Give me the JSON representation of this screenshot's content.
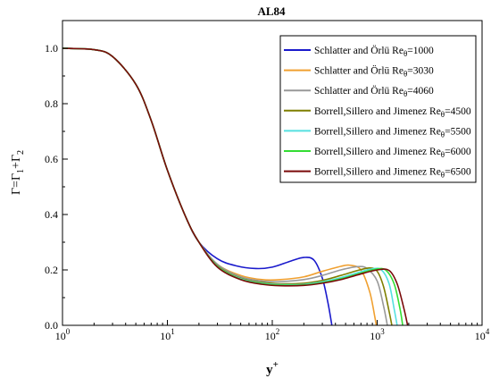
{
  "chart_data": {
    "type": "line",
    "title": "AL84",
    "xlabel": {
      "base": "y",
      "sup": "+"
    },
    "ylabel": {
      "parts": [
        "Γ=Γ",
        "1",
        "+Γ",
        "2"
      ]
    },
    "xscale": "log",
    "xlim": [
      1,
      10000
    ],
    "ylim": [
      0.0,
      1.1
    ],
    "x_ticks": [
      {
        "value": 1,
        "base": "10",
        "exp": "0"
      },
      {
        "value": 10,
        "base": "10",
        "exp": "1"
      },
      {
        "value": 100,
        "base": "10",
        "exp": "2"
      },
      {
        "value": 1000,
        "base": "10",
        "exp": "3"
      },
      {
        "value": 10000,
        "base": "10",
        "exp": "4"
      }
    ],
    "y_ticks": [
      {
        "value": 0.0,
        "label": "0.0"
      },
      {
        "value": 0.2,
        "label": "0.2"
      },
      {
        "value": 0.4,
        "label": "0.4"
      },
      {
        "value": 0.6,
        "label": "0.6"
      },
      {
        "value": 0.8,
        "label": "0.8"
      },
      {
        "value": 1.0,
        "label": "1.0"
      }
    ],
    "grid": false,
    "legend": "top-right",
    "series": [
      {
        "name": "Schlatter and Örlü Re",
        "subscript": "θ",
        "suffix": "=1000",
        "color": "#1a1acc",
        "points": [
          [
            1,
            1.0
          ],
          [
            2,
            0.995
          ],
          [
            3,
            0.97
          ],
          [
            5,
            0.87
          ],
          [
            7,
            0.74
          ],
          [
            10,
            0.56
          ],
          [
            15,
            0.39
          ],
          [
            20,
            0.3
          ],
          [
            30,
            0.24
          ],
          [
            45,
            0.215
          ],
          [
            70,
            0.205
          ],
          [
            100,
            0.21
          ],
          [
            150,
            0.232
          ],
          [
            200,
            0.245
          ],
          [
            250,
            0.235
          ],
          [
            300,
            0.17
          ],
          [
            340,
            0.08
          ],
          [
            370,
            0.0
          ]
        ]
      },
      {
        "name": "Schlatter and Örlü Re",
        "subscript": "θ",
        "suffix": "=3030",
        "color": "#f0a030",
        "points": [
          [
            1,
            1.0
          ],
          [
            2,
            0.995
          ],
          [
            3,
            0.97
          ],
          [
            5,
            0.87
          ],
          [
            7,
            0.74
          ],
          [
            10,
            0.56
          ],
          [
            15,
            0.39
          ],
          [
            20,
            0.3
          ],
          [
            30,
            0.22
          ],
          [
            50,
            0.18
          ],
          [
            80,
            0.165
          ],
          [
            120,
            0.165
          ],
          [
            200,
            0.175
          ],
          [
            300,
            0.195
          ],
          [
            450,
            0.213
          ],
          [
            550,
            0.217
          ],
          [
            700,
            0.2
          ],
          [
            850,
            0.12
          ],
          [
            950,
            0.03
          ],
          [
            980,
            0.0
          ]
        ]
      },
      {
        "name": "Schlatter and Örlü Re",
        "subscript": "θ",
        "suffix": "=4060",
        "color": "#999999",
        "points": [
          [
            1,
            1.0
          ],
          [
            2,
            0.995
          ],
          [
            3,
            0.97
          ],
          [
            5,
            0.87
          ],
          [
            7,
            0.74
          ],
          [
            10,
            0.56
          ],
          [
            15,
            0.39
          ],
          [
            20,
            0.3
          ],
          [
            30,
            0.22
          ],
          [
            50,
            0.175
          ],
          [
            80,
            0.16
          ],
          [
            120,
            0.158
          ],
          [
            200,
            0.165
          ],
          [
            300,
            0.18
          ],
          [
            450,
            0.2
          ],
          [
            650,
            0.212
          ],
          [
            800,
            0.205
          ],
          [
            1000,
            0.16
          ],
          [
            1150,
            0.07
          ],
          [
            1250,
            0.0
          ]
        ]
      },
      {
        "name": "Borrell,Sillero and Jimenez Re",
        "subscript": "θ",
        "suffix": "=4500",
        "color": "#7f7f00",
        "points": [
          [
            1,
            1.0
          ],
          [
            2,
            0.995
          ],
          [
            3,
            0.97
          ],
          [
            5,
            0.87
          ],
          [
            7,
            0.74
          ],
          [
            10,
            0.56
          ],
          [
            15,
            0.39
          ],
          [
            20,
            0.3
          ],
          [
            30,
            0.215
          ],
          [
            50,
            0.17
          ],
          [
            80,
            0.155
          ],
          [
            120,
            0.15
          ],
          [
            200,
            0.152
          ],
          [
            300,
            0.162
          ],
          [
            450,
            0.18
          ],
          [
            650,
            0.198
          ],
          [
            850,
            0.207
          ],
          [
            1000,
            0.195
          ],
          [
            1150,
            0.14
          ],
          [
            1300,
            0.05
          ],
          [
            1380,
            0.0
          ]
        ]
      },
      {
        "name": "Borrell,Sillero and Jimenez Re",
        "subscript": "θ",
        "suffix": "=5500",
        "color": "#55e0e0",
        "points": [
          [
            1,
            1.0
          ],
          [
            2,
            0.995
          ],
          [
            3,
            0.97
          ],
          [
            5,
            0.87
          ],
          [
            7,
            0.74
          ],
          [
            10,
            0.56
          ],
          [
            15,
            0.39
          ],
          [
            20,
            0.3
          ],
          [
            30,
            0.213
          ],
          [
            50,
            0.168
          ],
          [
            80,
            0.152
          ],
          [
            120,
            0.147
          ],
          [
            200,
            0.148
          ],
          [
            300,
            0.157
          ],
          [
            450,
            0.172
          ],
          [
            650,
            0.19
          ],
          [
            900,
            0.204
          ],
          [
            1100,
            0.2
          ],
          [
            1300,
            0.15
          ],
          [
            1450,
            0.06
          ],
          [
            1550,
            0.0
          ]
        ]
      },
      {
        "name": "Borrell,Sillero and Jimenez Re",
        "subscript": "θ",
        "suffix": "=6000",
        "color": "#33dd33",
        "points": [
          [
            1,
            1.0
          ],
          [
            2,
            0.995
          ],
          [
            3,
            0.97
          ],
          [
            5,
            0.87
          ],
          [
            7,
            0.74
          ],
          [
            10,
            0.56
          ],
          [
            15,
            0.39
          ],
          [
            20,
            0.3
          ],
          [
            30,
            0.212
          ],
          [
            50,
            0.166
          ],
          [
            80,
            0.15
          ],
          [
            120,
            0.145
          ],
          [
            200,
            0.146
          ],
          [
            300,
            0.154
          ],
          [
            450,
            0.168
          ],
          [
            650,
            0.185
          ],
          [
            950,
            0.202
          ],
          [
            1200,
            0.2
          ],
          [
            1450,
            0.15
          ],
          [
            1650,
            0.06
          ],
          [
            1750,
            0.0
          ]
        ]
      },
      {
        "name": "Borrell,Sillero and Jimenez Re",
        "subscript": "θ",
        "suffix": "=6500",
        "color": "#7a0a0a",
        "points": [
          [
            1,
            1.0
          ],
          [
            2,
            0.995
          ],
          [
            3,
            0.97
          ],
          [
            5,
            0.87
          ],
          [
            7,
            0.74
          ],
          [
            10,
            0.56
          ],
          [
            15,
            0.39
          ],
          [
            20,
            0.3
          ],
          [
            30,
            0.21
          ],
          [
            50,
            0.165
          ],
          [
            80,
            0.148
          ],
          [
            120,
            0.143
          ],
          [
            200,
            0.144
          ],
          [
            300,
            0.152
          ],
          [
            450,
            0.165
          ],
          [
            650,
            0.182
          ],
          [
            1000,
            0.2
          ],
          [
            1300,
            0.198
          ],
          [
            1550,
            0.15
          ],
          [
            1800,
            0.06
          ],
          [
            1950,
            0.0
          ]
        ]
      }
    ]
  }
}
